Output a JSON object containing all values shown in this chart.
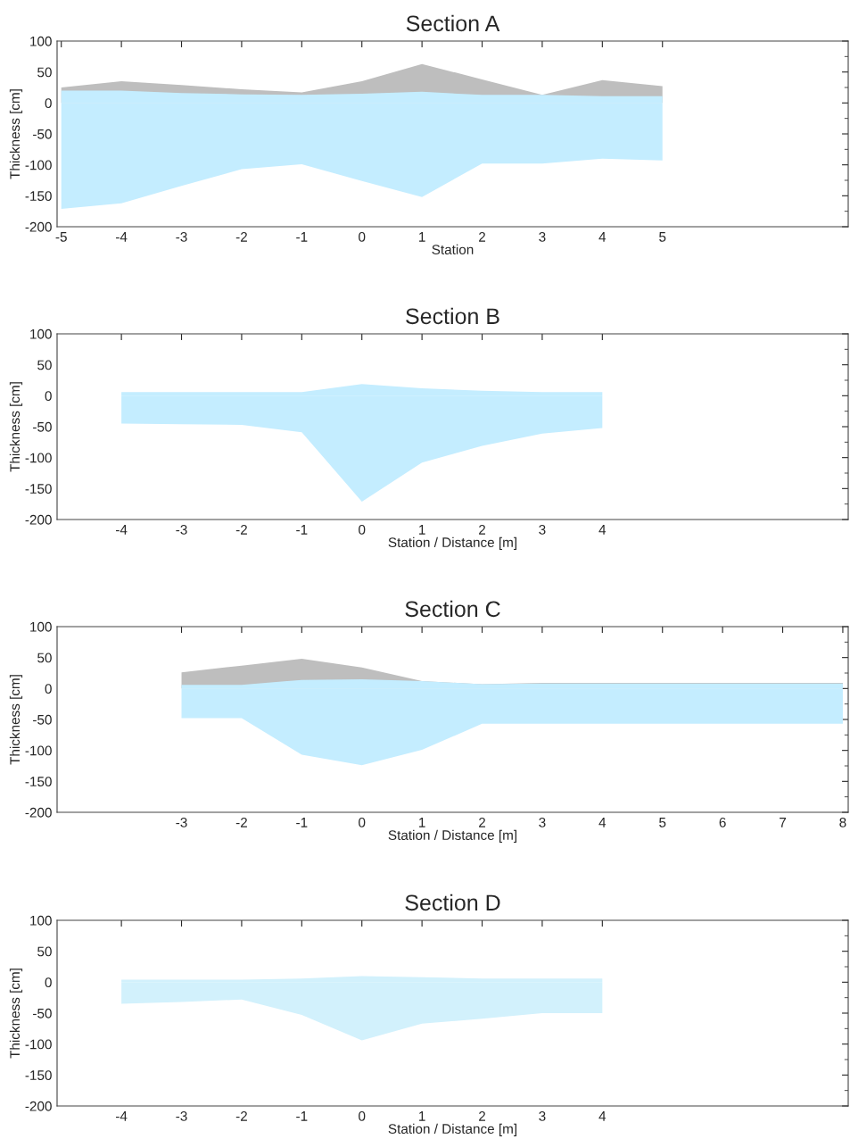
{
  "chart_data": [
    {
      "type": "area",
      "title": "Section A",
      "xlabel": "Station",
      "ylabel": "Thickness [cm]",
      "xlim": [
        -5.07,
        8.09
      ],
      "xticks": [
        -5,
        -4,
        -3,
        -2,
        -1,
        0,
        1,
        2,
        3,
        4,
        5
      ],
      "ylim": [
        -200,
        100
      ],
      "yticks": [
        -200,
        -150,
        -100,
        -50,
        0,
        50,
        100
      ],
      "grid": false,
      "x": [
        -5,
        -4,
        -3,
        -2,
        -1,
        0,
        1,
        2,
        3,
        4,
        5
      ],
      "series": [
        {
          "color": "#bebebe",
          "values": [
            25,
            35,
            29,
            22,
            17,
            35,
            63,
            38,
            13,
            37,
            27
          ]
        },
        {
          "color": "#c4edff",
          "values": [
            20,
            20,
            16,
            14,
            13,
            15,
            18,
            13,
            13,
            11,
            11
          ]
        },
        {
          "color": "#c4edff",
          "values": [
            -171,
            -162,
            -134,
            -107,
            -99,
            -126,
            -152,
            -98,
            -98,
            -90,
            -93
          ]
        }
      ]
    },
    {
      "type": "area",
      "title": "Section B",
      "xlabel": "Station / Distance [m]",
      "ylabel": "Thickness [cm]",
      "xlim": [
        -5.07,
        8.09
      ],
      "xticks": [
        -4,
        -3,
        -2,
        -1,
        0,
        1,
        2,
        3,
        4
      ],
      "ylim": [
        -200,
        100
      ],
      "yticks": [
        -200,
        -150,
        -100,
        -50,
        0,
        50,
        100
      ],
      "grid": false,
      "x": [
        -4,
        -3,
        -2,
        -1,
        0,
        1,
        2,
        3,
        4
      ],
      "series": [
        {
          "color": "#c4edff",
          "values": [
            6,
            6,
            6,
            6,
            19,
            12,
            8,
            6,
            6
          ]
        },
        {
          "color": "#c4edff",
          "values": [
            -45,
            -46,
            -47,
            -59,
            -171,
            -108,
            -81,
            -61,
            -52
          ]
        }
      ]
    },
    {
      "type": "area",
      "title": "Section C",
      "xlabel": "Station / Distance [m]",
      "ylabel": "Thickness [cm]",
      "xlim": [
        -5.07,
        8.09
      ],
      "xticks": [
        -3,
        -2,
        -1,
        0,
        1,
        2,
        3,
        4,
        5,
        6,
        7,
        8
      ],
      "ylim": [
        -200,
        100
      ],
      "yticks": [
        -200,
        -150,
        -100,
        -50,
        0,
        50,
        100
      ],
      "grid": false,
      "x": [
        -3,
        -2,
        -1,
        0,
        1,
        2,
        3,
        4,
        5,
        6,
        7,
        8
      ],
      "series": [
        {
          "color": "#bebebe",
          "values": [
            26,
            37,
            48,
            34,
            12,
            7,
            9,
            9,
            9,
            9,
            9,
            9
          ]
        },
        {
          "color": "#c4edff",
          "values": [
            6,
            6,
            14,
            15,
            12,
            7,
            8,
            8,
            8,
            8,
            8,
            8
          ]
        },
        {
          "color": "#c4edff",
          "values": [
            -48,
            -48,
            -107,
            -124,
            -99,
            -57,
            -57,
            -57,
            -57,
            -57,
            -57,
            -57
          ]
        }
      ]
    },
    {
      "type": "area",
      "title": "Section D",
      "xlabel": "Station / Distance [m]",
      "ylabel": "Thickness [cm]",
      "xlim": [
        -5.07,
        8.09
      ],
      "xticks": [
        -4,
        -3,
        -2,
        -1,
        0,
        1,
        2,
        3,
        4
      ],
      "ylim": [
        -200,
        100
      ],
      "yticks": [
        -200,
        -150,
        -100,
        -50,
        0,
        50,
        100
      ],
      "grid": false,
      "x": [
        -4,
        -3,
        -2,
        -1,
        0,
        1,
        2,
        3,
        4
      ],
      "series": [
        {
          "color": "#d2f1fc",
          "values": [
            4,
            4,
            4,
            6,
            10,
            8,
            6,
            6,
            6
          ]
        },
        {
          "color": "#d2f1fc",
          "values": [
            -35,
            -32,
            -28,
            -53,
            -94,
            -67,
            -59,
            -50,
            -50
          ]
        }
      ]
    }
  ]
}
